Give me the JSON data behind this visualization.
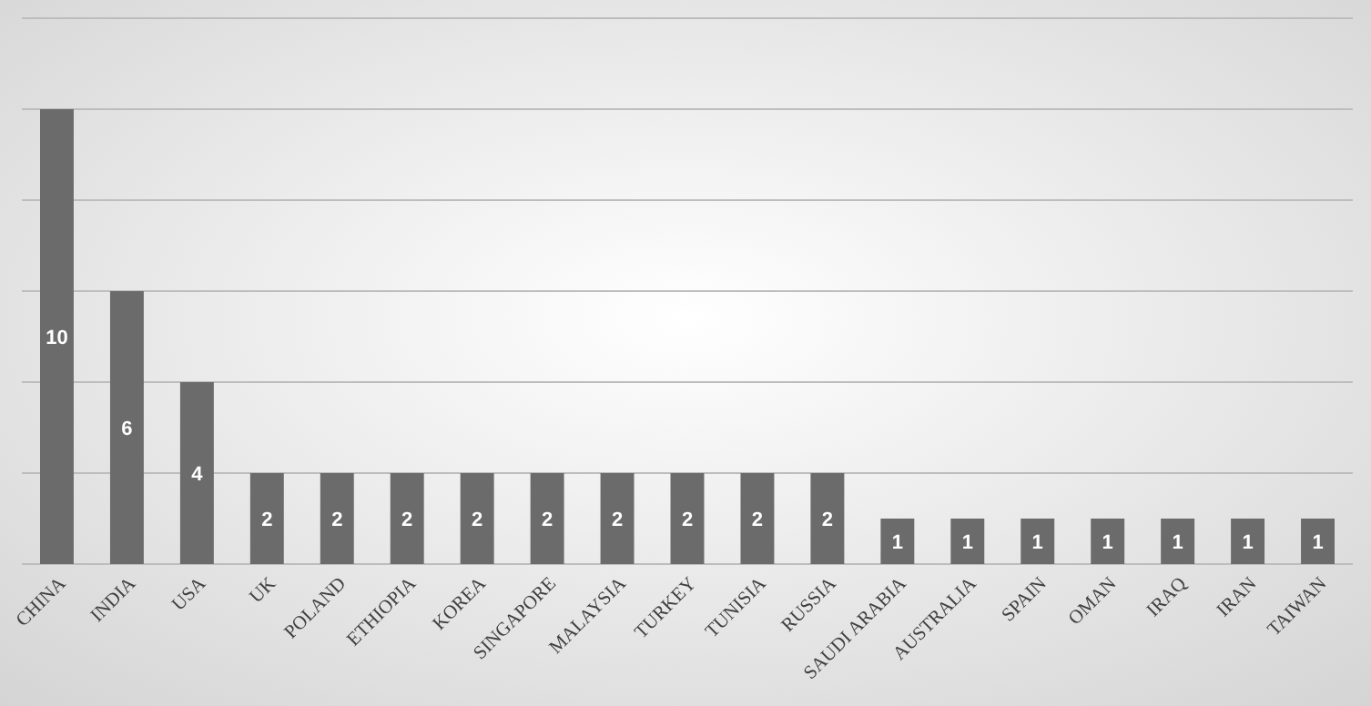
{
  "chart_data": {
    "type": "bar",
    "categories": [
      "CHINA",
      "INDIA",
      "USA",
      "UK",
      "POLAND",
      "ETHIOPIA",
      "KOREA",
      "SINGAPORE",
      "MALAYSIA",
      "TURKEY",
      "TUNISIA",
      "RUSSIA",
      "SAUDI ARABIA",
      "AUSTRALIA",
      "SPAIN",
      "OMAN",
      "IRAQ",
      "IRAN",
      "TAIWAN"
    ],
    "values": [
      10,
      6,
      4,
      2,
      2,
      2,
      2,
      2,
      2,
      2,
      2,
      2,
      1,
      1,
      1,
      1,
      1,
      1,
      1
    ],
    "color": "#6b6b6b",
    "ylim": [
      0,
      12
    ],
    "yticks": [
      {
        "value": 0,
        "label": null
      },
      {
        "value": 2,
        "label": null
      },
      {
        "value": 4,
        "label": null
      },
      {
        "value": 6,
        "label": null
      },
      {
        "value": 8,
        "label": null
      },
      {
        "value": 10,
        "label": null
      },
      {
        "value": 12,
        "label": null
      }
    ],
    "grid": "y",
    "tick_labels": "x",
    "data_labels": true
  }
}
